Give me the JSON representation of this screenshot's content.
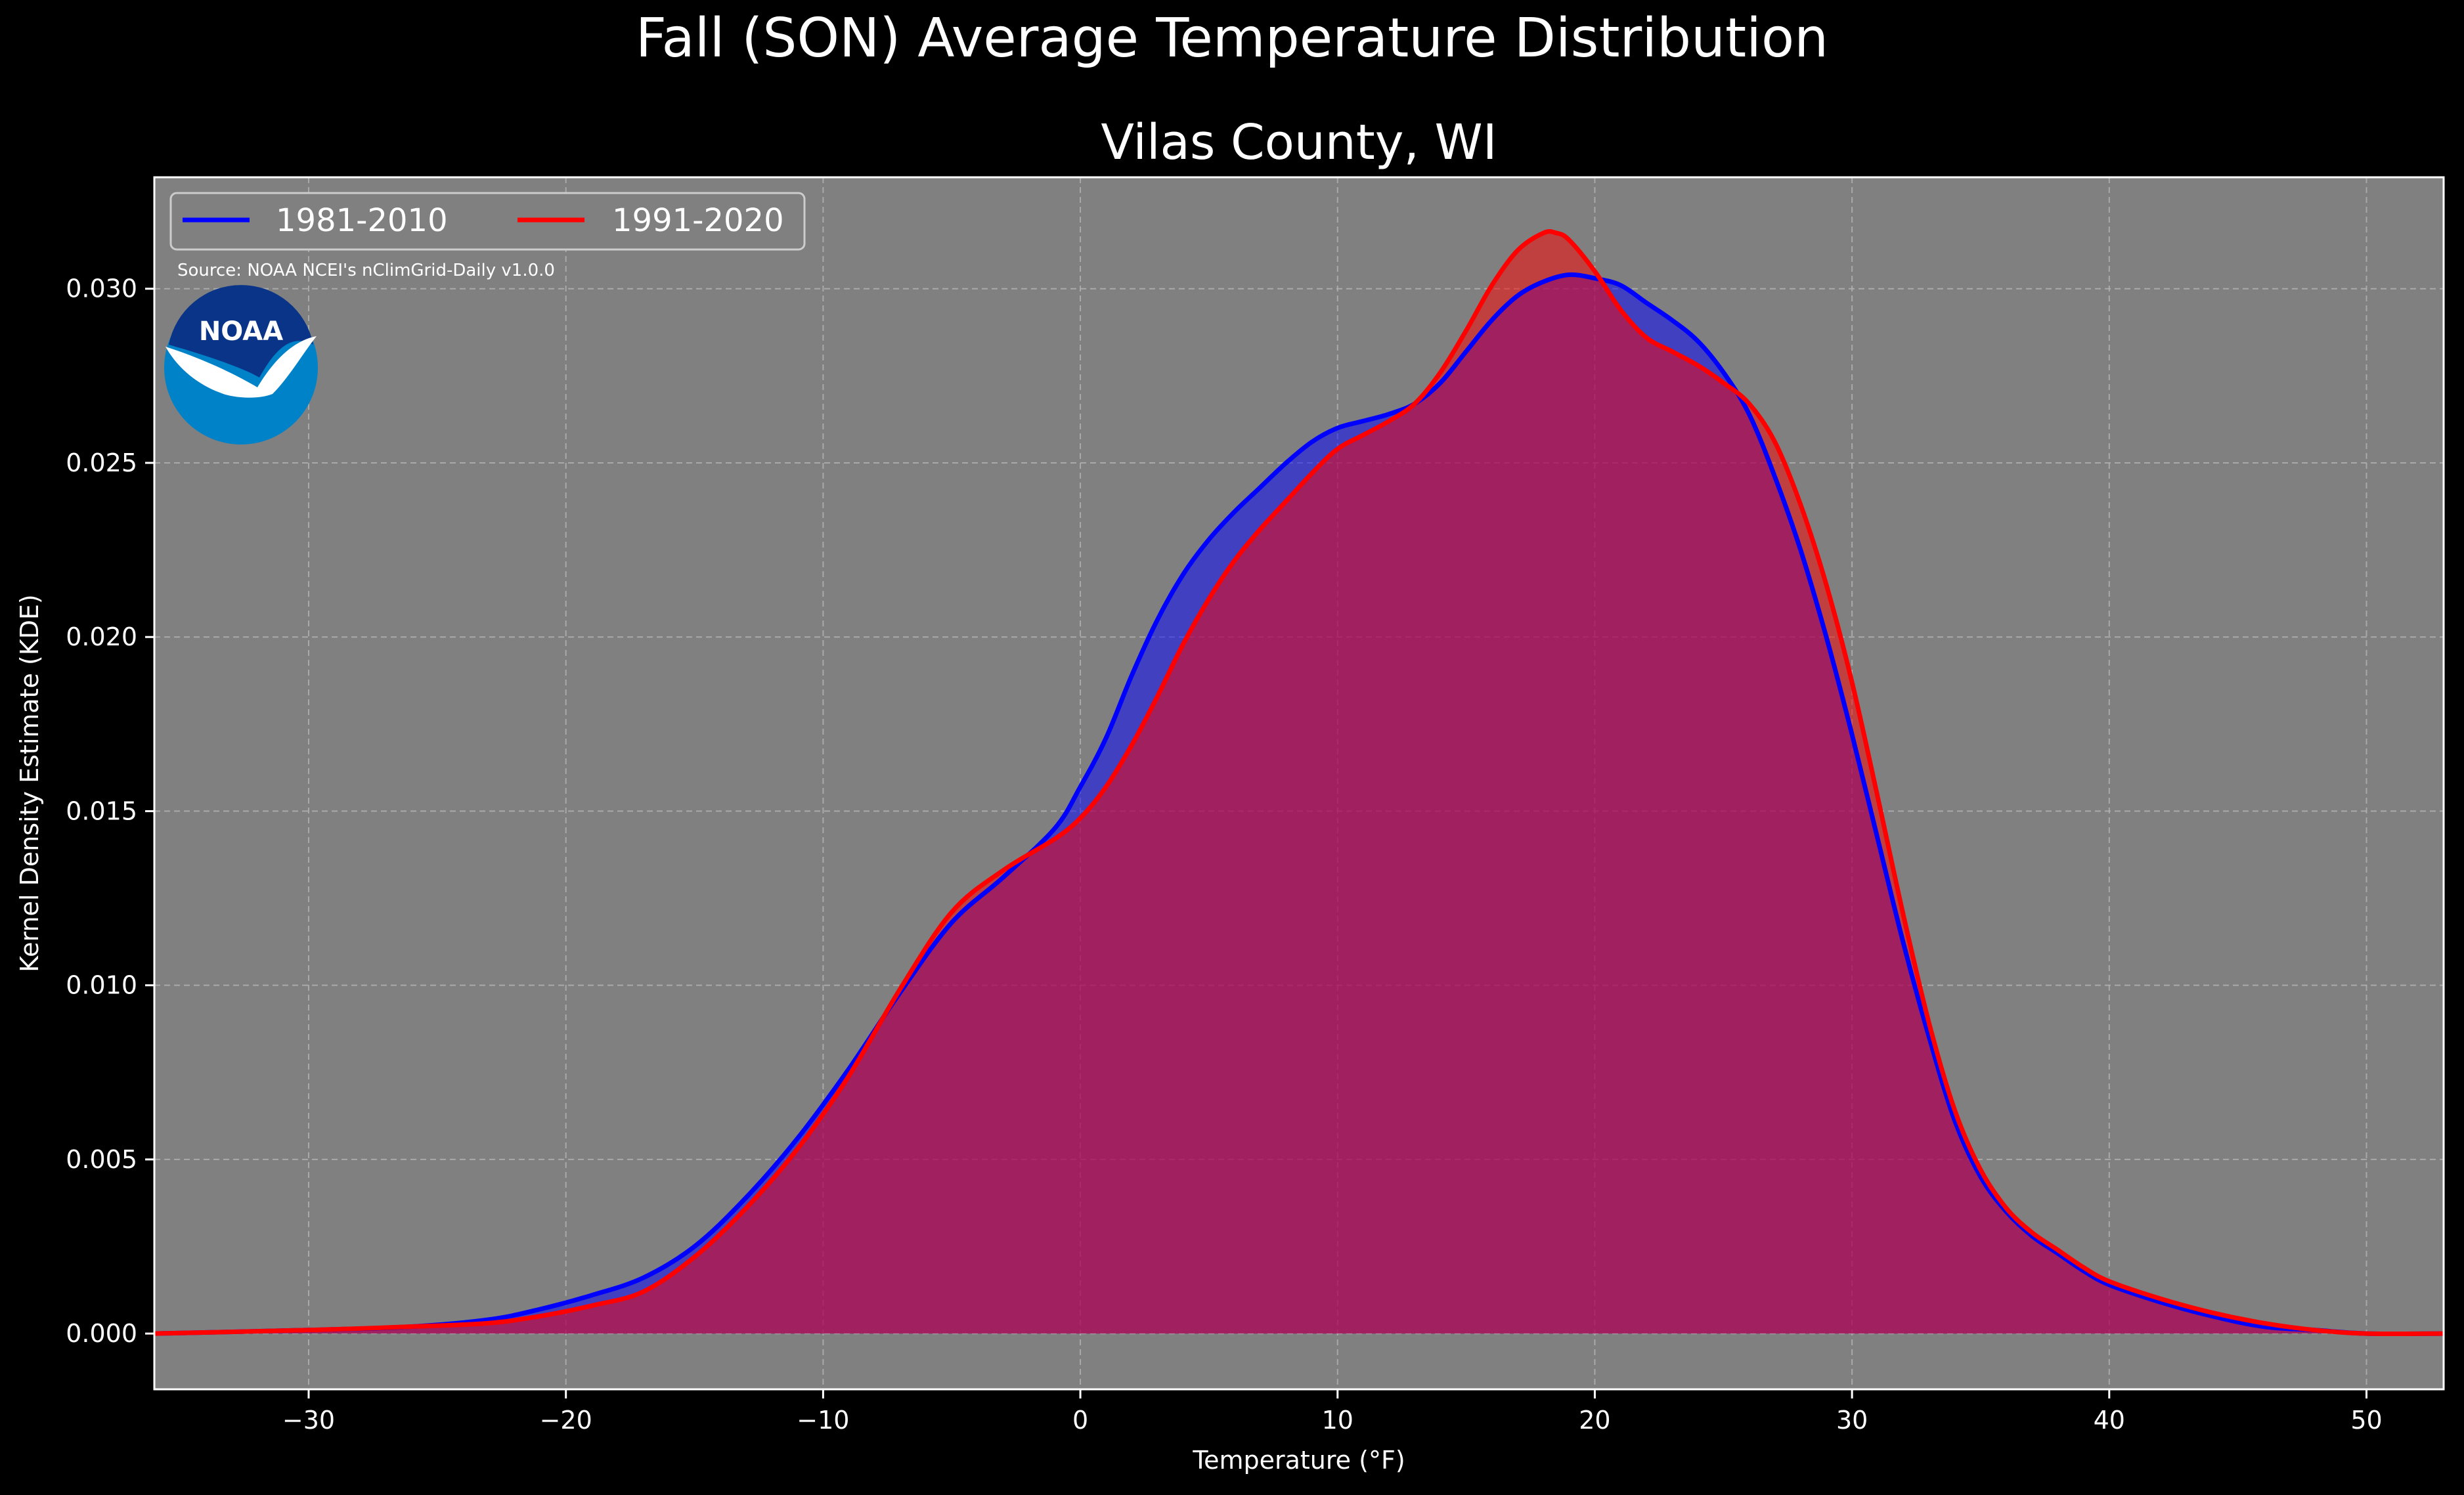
{
  "chart_data": {
    "type": "area",
    "suptitle": "Fall (SON) Average Temperature Distribution",
    "title": "Vilas County, WI",
    "xlabel": "Temperature (°F)",
    "ylabel": "Kernel Density Estimate (KDE)",
    "xlim": [
      -36,
      53
    ],
    "ylim": [
      -0.0016,
      0.0332
    ],
    "xticks": [
      -30,
      -20,
      -10,
      0,
      10,
      20,
      30,
      40,
      50
    ],
    "xtick_labels": [
      "−30",
      "−20",
      "−10",
      "0",
      "10",
      "20",
      "30",
      "40",
      "50"
    ],
    "yticks": [
      0.0,
      0.005,
      0.01,
      0.015,
      0.02,
      0.025,
      0.03
    ],
    "ytick_labels": [
      "0.000",
      "0.005",
      "0.010",
      "0.015",
      "0.020",
      "0.025",
      "0.030"
    ],
    "grid": true,
    "legend_position": "top-left",
    "background_color": "#808080",
    "series": [
      {
        "name": "1981-2010",
        "color": "#0000ff",
        "x": [
          -36,
          -30,
          -26,
          -23,
          -21,
          -19,
          -17,
          -15,
          -13,
          -11,
          -9,
          -7,
          -5,
          -3,
          -1,
          0,
          1,
          2,
          3,
          4,
          5,
          6,
          7,
          8,
          9,
          10,
          11,
          12,
          13,
          14,
          15,
          16,
          17,
          18,
          19,
          20,
          21,
          22,
          23,
          24,
          25,
          26,
          27,
          28,
          29,
          30,
          31,
          32,
          33,
          34,
          35,
          36,
          37,
          38,
          39,
          40,
          42,
          44,
          46,
          48,
          50,
          53
        ],
        "y": [
          0.0,
          0.0001,
          0.0002,
          0.0004,
          0.0007,
          0.0011,
          0.0016,
          0.0025,
          0.0039,
          0.0056,
          0.0076,
          0.0098,
          0.0118,
          0.0131,
          0.0145,
          0.0157,
          0.0171,
          0.0189,
          0.0205,
          0.0218,
          0.0228,
          0.0236,
          0.0243,
          0.025,
          0.0256,
          0.026,
          0.0262,
          0.0264,
          0.0267,
          0.0273,
          0.0282,
          0.0291,
          0.0298,
          0.0302,
          0.0304,
          0.0303,
          0.0301,
          0.0296,
          0.0291,
          0.0285,
          0.0276,
          0.0264,
          0.0246,
          0.0225,
          0.02,
          0.0172,
          0.0142,
          0.0112,
          0.0085,
          0.0061,
          0.0045,
          0.0035,
          0.0028,
          0.0023,
          0.0018,
          0.0014,
          0.0009,
          0.0005,
          0.0002,
          0.0001,
          0.0,
          0.0
        ]
      },
      {
        "name": "1991-2020",
        "color": "#ff0000",
        "x": [
          -36,
          -30,
          -26,
          -23,
          -21,
          -19,
          -17,
          -15,
          -13,
          -11,
          -9,
          -7,
          -5,
          -3,
          -1,
          0,
          1,
          2,
          3,
          4,
          5,
          6,
          7,
          8,
          9,
          10,
          11,
          12,
          13,
          14,
          15,
          16,
          17,
          18,
          18.5,
          19,
          20,
          21,
          22,
          23,
          24,
          25,
          26,
          27,
          28,
          29,
          30,
          31,
          32,
          33,
          34,
          35,
          36,
          37,
          38,
          39,
          40,
          42,
          44,
          46,
          48,
          50,
          53
        ],
        "y": [
          0.0,
          0.0001,
          0.0002,
          0.0003,
          0.0005,
          0.0008,
          0.0012,
          0.0022,
          0.0036,
          0.0053,
          0.0074,
          0.0099,
          0.0121,
          0.0133,
          0.0142,
          0.0148,
          0.0157,
          0.0169,
          0.0183,
          0.0198,
          0.0211,
          0.0222,
          0.0231,
          0.0239,
          0.0247,
          0.0254,
          0.0258,
          0.0262,
          0.0267,
          0.0276,
          0.0288,
          0.0301,
          0.0311,
          0.0316,
          0.0316,
          0.0314,
          0.0305,
          0.0294,
          0.0286,
          0.0282,
          0.0278,
          0.0273,
          0.0267,
          0.0256,
          0.0238,
          0.0215,
          0.0187,
          0.0154,
          0.012,
          0.0089,
          0.0064,
          0.0047,
          0.0036,
          0.0029,
          0.0024,
          0.0019,
          0.0015,
          0.001,
          0.0006,
          0.0003,
          0.0001,
          0.0,
          0.0
        ]
      }
    ]
  },
  "legend": {
    "items": [
      "1981-2010",
      "1991-2020"
    ]
  },
  "source_note": "Source: NOAA NCEI's nClimGrid-Daily v1.0.0",
  "logo": {
    "text": "NOAA",
    "outer_color": "#0082c8",
    "inner_color": "#0a3488",
    "wing_color": "#ffffff"
  },
  "colors": {
    "figure_background": "#000000",
    "axes_background": "#808080",
    "grid": "#b4b4b4",
    "spine": "#ffffff",
    "fill_overlap": "#9e1f5c"
  }
}
